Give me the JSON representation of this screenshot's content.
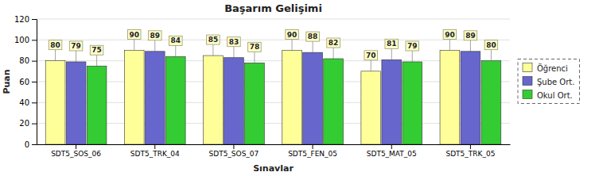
{
  "chart_data": {
    "type": "bar",
    "title": "Başarım Gelişimi",
    "xlabel": "Sınavlar",
    "ylabel": "Puan",
    "categories": [
      "SDT5_SOS_06",
      "SDT5_TRK_04",
      "SDT5_SOS_07",
      "SDT5_FEN_05",
      "SDT5_MAT_05",
      "SDT5_TRK_05"
    ],
    "series": [
      {
        "name": "Öğrenci",
        "color": "#ffff99",
        "values": [
          80,
          90,
          85,
          90,
          70,
          90
        ]
      },
      {
        "name": "Şube Ort.",
        "color": "#6666cc",
        "values": [
          79,
          89,
          83,
          88,
          81,
          89
        ]
      },
      {
        "name": "Okul Ort.",
        "color": "#33cc33",
        "values": [
          75,
          84,
          78,
          82,
          79,
          80
        ]
      }
    ],
    "ylim": [
      0,
      120
    ],
    "yticks": [
      0,
      20,
      40,
      60,
      80,
      100,
      120
    ],
    "grid": true,
    "legend": "right",
    "data_labels": true
  }
}
